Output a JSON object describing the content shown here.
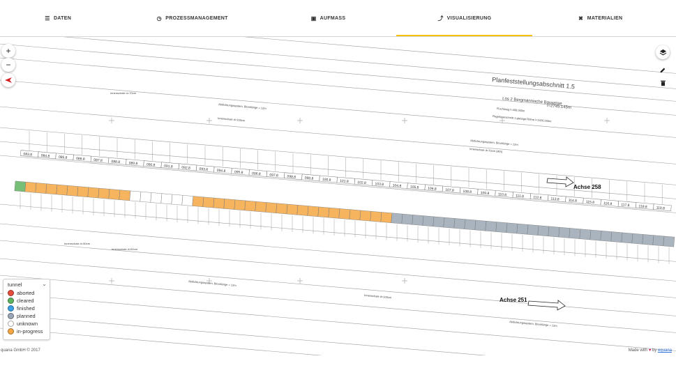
{
  "nav": {
    "tabs": [
      {
        "label": "DATEN",
        "icon": "list-icon"
      },
      {
        "label": "PROZESSMANAGEMENT",
        "icon": "clock-icon"
      },
      {
        "label": "AUFMASS",
        "icon": "clipboard-icon"
      },
      {
        "label": "VISUALISIERUNG",
        "icon": "chart-line-icon",
        "active": true
      },
      {
        "label": "MATERIALIEN",
        "icon": "tools-icon"
      }
    ],
    "active_color": "#f4c20d"
  },
  "map_controls": {
    "zoom_in": "+",
    "zoom_out": "−",
    "compass": "north-arrow-icon"
  },
  "tools": [
    "layers-icon",
    "pencil-icon",
    "trash-icon"
  ],
  "drawing": {
    "title": "Planfeststellungsabschnitt 1.5",
    "subtitle": "Los 2 Bergmännische Bauweise",
    "length": "l=2745.145m",
    "flucht": "Fluchtweg l=408.000m",
    "regelquerschnitt": "Regelquerschnitt 1-gleisige Röhre l=2426.030m",
    "innenschale_1": "Innenschale d=70cm",
    "innenschale_2": "Innenschale d=100cm",
    "innenschale_3": "Innenschale d=70cm (WS)",
    "innenschale_4": "Innenschale d=50cm",
    "innenschale_5": "Innenschale d=50cm",
    "innenschale_6": "Innenschale d=100cm",
    "abdichtung_1": "Abdichtungssystem, Blocklänge = 12m",
    "abdichtung_2": "Abdichtungssystem, Blocklänge = 12m",
    "abdichtung_3": "Abdichtungssystem, Blocklänge = 12m",
    "abdichtung_4": "Abdichtungssystem, Blocklänge = 12m",
    "achse_top": "Achse 258",
    "achse_bottom": "Achse 251",
    "upper_blocks": [
      "083.8",
      "084.8",
      "085.8",
      "086.8",
      "087.8",
      "088.8",
      "089.8",
      "090.8",
      "091.8",
      "092.8",
      "093.8",
      "094.8",
      "095.8",
      "096.8",
      "097.8",
      "098.8",
      "099.8",
      "100.8",
      "101.8",
      "102.8",
      "103.8",
      "104.8",
      "105.8",
      "106.8",
      "107.8",
      "108.8",
      "109.8",
      "110.8",
      "111.8",
      "112.8",
      "113.8",
      "114.8",
      "115.8",
      "116.8",
      "117.8",
      "118.8",
      "119.8"
    ],
    "lower_blocks_status": [
      "cleared",
      "in-progress",
      "in-progress",
      "in-progress",
      "in-progress",
      "in-progress",
      "in-progress",
      "in-progress",
      "in-progress",
      "in-progress",
      "in-progress",
      "unknown",
      "unknown",
      "unknown",
      "unknown",
      "unknown",
      "unknown",
      "in-progress",
      "in-progress",
      "in-progress",
      "in-progress",
      "in-progress",
      "in-progress",
      "in-progress",
      "in-progress",
      "in-progress",
      "in-progress",
      "in-progress",
      "in-progress",
      "in-progress",
      "in-progress",
      "in-progress",
      "in-progress",
      "in-progress",
      "in-progress",
      "in-progress",
      "planned",
      "planned",
      "planned",
      "planned",
      "planned",
      "planned",
      "planned",
      "planned",
      "planned",
      "planned",
      "planned",
      "planned",
      "planned",
      "planned",
      "planned",
      "planned",
      "planned",
      "planned",
      "planned",
      "planned",
      "planned",
      "planned",
      "planned",
      "planned",
      "planned",
      "planned",
      "planned"
    ]
  },
  "legend": {
    "title": "tunnel",
    "items": [
      {
        "label": "aborted",
        "color": "#e74c3c"
      },
      {
        "label": "cleared",
        "color": "#5fb35f"
      },
      {
        "label": "finished",
        "color": "#3aa0e6"
      },
      {
        "label": "planned",
        "color": "#9aa7b4"
      },
      {
        "label": "unknown",
        "color": "#ffffff"
      },
      {
        "label": "in-progress",
        "color": "#f5a742"
      }
    ]
  },
  "footer": {
    "left": "quana GmbH © 2017",
    "made_with": "Made with",
    "by": "by",
    "link": "equana"
  }
}
